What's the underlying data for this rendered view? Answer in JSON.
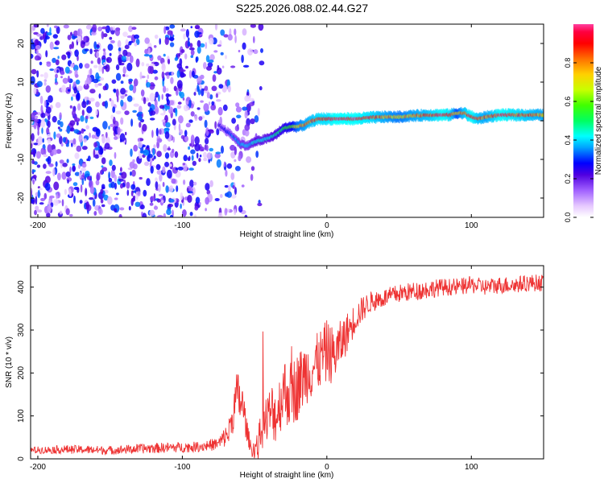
{
  "figure": {
    "title": "S225.2026.088.02.44.G27",
    "background": "#ffffff"
  },
  "chart_data": [
    {
      "type": "heatmap",
      "title": "S225.2026.088.02.44.G27",
      "xlabel": "Height of straight line (km)",
      "ylabel": "Frequency (Hz)",
      "xlim": [
        -205,
        150
      ],
      "ylim": [
        -25,
        25
      ],
      "xticks": [
        -200,
        -100,
        0,
        100
      ],
      "yticks": [
        -20,
        -10,
        0,
        10,
        20
      ],
      "colorbar": {
        "label": "Normalized spectral amplitude",
        "range": [
          0.0,
          1.0
        ],
        "ticks": [
          0.0,
          0.2,
          0.4,
          0.6,
          0.8
        ],
        "tick_labels": [
          "0.0",
          "0.2",
          "0.4",
          "0.6",
          "0.8"
        ],
        "colormap": [
          "#ffffff",
          "#e6c8ff",
          "#a060ff",
          "#5000e0",
          "#0000ff",
          "#00a0ff",
          "#00ffff",
          "#00ff60",
          "#40ff00",
          "#c8ff00",
          "#ffd000",
          "#ff7000",
          "#ff0000",
          "#ff0040",
          "#ff40a0"
        ]
      },
      "noise_region": {
        "x_from": -205,
        "x_to": -45,
        "amplitude": [
          0.05,
          0.35
        ]
      },
      "ridge": {
        "x": [
          -75,
          -65,
          -60,
          -55,
          -50,
          -45,
          -40,
          -35,
          -30,
          -25,
          -20,
          -15,
          -10,
          -5,
          0,
          5,
          10,
          15,
          20,
          30,
          40,
          50,
          60,
          70,
          80,
          85,
          90,
          95,
          100,
          105,
          110,
          120,
          130,
          140,
          150
        ],
        "frequency": [
          -1.0,
          -4.0,
          -6.0,
          -6.5,
          -5.5,
          -5.0,
          -4.5,
          -3.5,
          -2.0,
          -1.5,
          -1.5,
          -1.0,
          0.0,
          0.5,
          0.5,
          0.5,
          0.5,
          0.5,
          0.5,
          0.8,
          1.0,
          1.0,
          1.3,
          1.5,
          1.5,
          1.5,
          2.0,
          2.0,
          1.0,
          0.5,
          1.0,
          1.5,
          1.5,
          1.5,
          1.5
        ],
        "amplitude": [
          0.25,
          0.35,
          0.4,
          0.4,
          0.45,
          0.45,
          0.45,
          0.5,
          0.55,
          0.6,
          0.75,
          0.8,
          0.85,
          0.9,
          0.9,
          0.95,
          0.95,
          0.95,
          0.95,
          0.9,
          0.8,
          0.75,
          0.8,
          0.85,
          0.95,
          0.9,
          0.7,
          0.85,
          0.95,
          0.85,
          0.8,
          0.95,
          0.9,
          0.85,
          0.8
        ]
      },
      "colors": {
        "frame": "#000000"
      }
    },
    {
      "type": "line",
      "xlabel": "Height of straight line (km)",
      "ylabel": "SNR (10 * v/v)",
      "xlim": [
        -205,
        150
      ],
      "ylim": [
        0,
        450
      ],
      "xticks": [
        -200,
        -100,
        0,
        100
      ],
      "yticks": [
        0,
        100,
        200,
        300,
        400
      ],
      "series": [
        {
          "name": "SNR",
          "color": "#ee3333",
          "x": [
            -205,
            -180,
            -150,
            -120,
            -90,
            -75,
            -68,
            -62,
            -58,
            -55,
            -52,
            -48,
            -45,
            -42,
            -38,
            -35,
            -30,
            -25,
            -20,
            -15,
            -10,
            -5,
            0,
            5,
            10,
            15,
            20,
            25,
            30,
            40,
            50,
            60,
            70,
            80,
            90,
            100,
            110,
            120,
            130,
            140,
            150
          ],
          "values": [
            20,
            22,
            20,
            25,
            28,
            35,
            60,
            150,
            120,
            60,
            20,
            30,
            70,
            90,
            110,
            100,
            160,
            150,
            170,
            200,
            210,
            230,
            250,
            240,
            270,
            300,
            330,
            350,
            365,
            375,
            385,
            390,
            395,
            400,
            400,
            405,
            400,
            405,
            405,
            410,
            410
          ],
          "noise": [
            8,
            10,
            10,
            12,
            12,
            15,
            30,
            60,
            50,
            25,
            15,
            35,
            50,
            60,
            70,
            65,
            80,
            80,
            80,
            75,
            70,
            70,
            75,
            65,
            55,
            45,
            35,
            30,
            25,
            22,
            22,
            22,
            22,
            20,
            20,
            20,
            20,
            20,
            20,
            20,
            20
          ]
        }
      ],
      "colors": {
        "frame": "#000000"
      }
    }
  ]
}
